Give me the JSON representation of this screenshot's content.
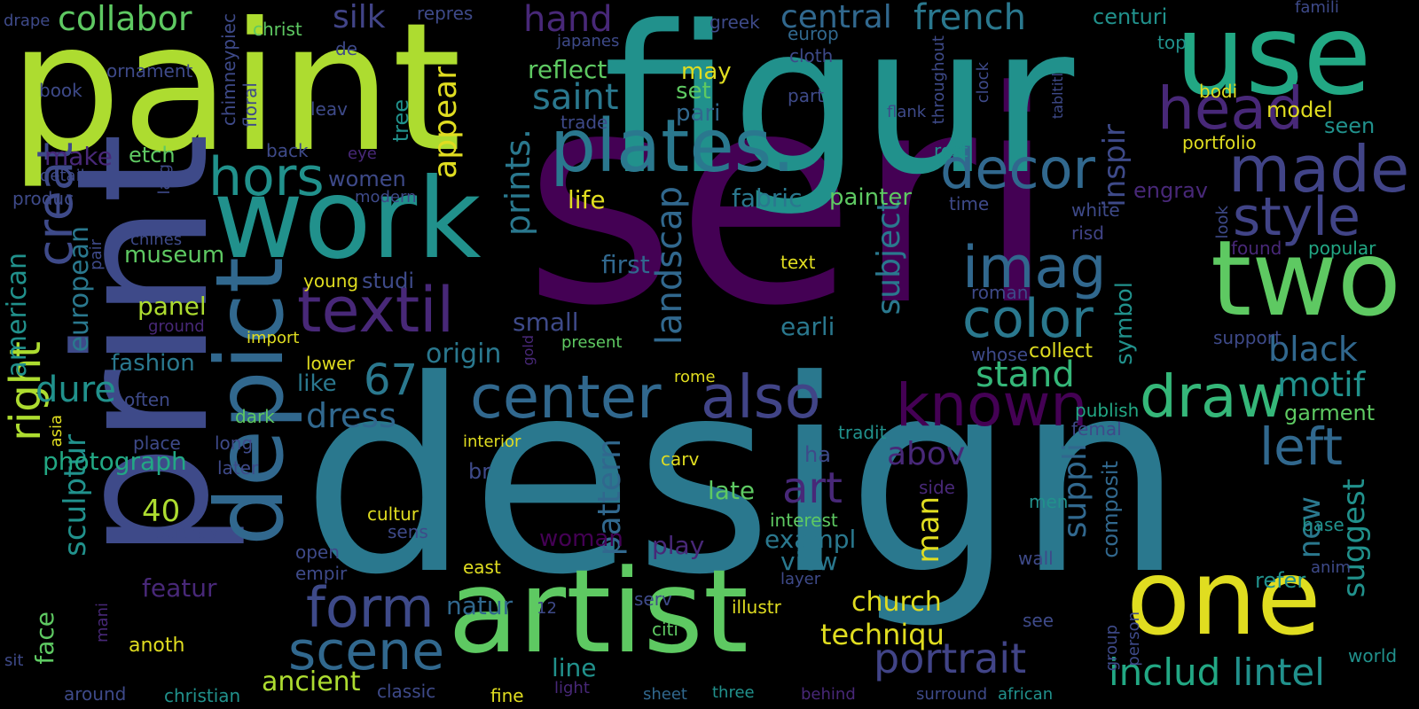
{
  "palette": {
    "dark_purple": "#440154",
    "indigo": "#482878",
    "violet": "#414487",
    "slate_blue": "#3e4a89",
    "steel_blue": "#31688e",
    "ocean": "#2a788e",
    "teal": "#21918c",
    "sea_green": "#22a884",
    "emerald": "#35b779",
    "green": "#5ec962",
    "lime": "#addc30",
    "yellow": "#fde725",
    "gold": "#e0dd20",
    "faint": "#3a3f6a"
  },
  "words": [
    {
      "text": "seri",
      "color": "#440154"
    },
    {
      "text": "design",
      "color": "#2a788e"
    },
    {
      "text": "figur",
      "color": "#21918c"
    },
    {
      "text": "paint",
      "color": "#addc30"
    },
    {
      "text": "print",
      "color": "#3e4a89"
    },
    {
      "text": "artist",
      "color": "#5ec962"
    },
    {
      "text": "work",
      "color": "#21918c"
    },
    {
      "text": "depict",
      "color": "#31688e"
    },
    {
      "text": "use",
      "color": "#22a884"
    },
    {
      "text": "two",
      "color": "#5ec962"
    },
    {
      "text": "one",
      "color": "#e0dd20"
    },
    {
      "text": "plates.",
      "color": "#2a788e"
    },
    {
      "text": "made",
      "color": "#414487"
    },
    {
      "text": "textil",
      "color": "#482878"
    },
    {
      "text": "imag",
      "color": "#31688e"
    },
    {
      "text": "center",
      "color": "#31688e"
    },
    {
      "text": "also",
      "color": "#414487"
    },
    {
      "text": "known",
      "color": "#440154"
    },
    {
      "text": "draw",
      "color": "#35b779"
    },
    {
      "text": "head",
      "color": "#482878"
    },
    {
      "text": "decor",
      "color": "#31688e"
    },
    {
      "text": "style",
      "color": "#414487"
    },
    {
      "text": "color",
      "color": "#2a788e"
    },
    {
      "text": "form",
      "color": "#3e4a89"
    },
    {
      "text": "scene",
      "color": "#31688e"
    },
    {
      "text": "hors",
      "color": "#21918c"
    },
    {
      "text": "creat",
      "color": "#3e4a89"
    },
    {
      "text": "left",
      "color": "#31688e"
    },
    {
      "text": "portrait",
      "color": "#414487"
    },
    {
      "text": "right",
      "color": "#addc30"
    },
    {
      "text": "art",
      "color": "#482878"
    },
    {
      "text": "67",
      "color": "#2a788e"
    },
    {
      "text": "dress",
      "color": "#31688e"
    },
    {
      "text": "stand",
      "color": "#35b779"
    },
    {
      "text": "black",
      "color": "#31688e"
    },
    {
      "text": "motif",
      "color": "#21918c"
    },
    {
      "text": "collabor",
      "color": "#5ec962"
    },
    {
      "text": "central",
      "color": "#31688e"
    },
    {
      "text": "french",
      "color": "#2a788e"
    },
    {
      "text": "hand",
      "color": "#482878"
    },
    {
      "text": "silk",
      "color": "#414487"
    },
    {
      "text": "saint",
      "color": "#2a788e"
    },
    {
      "text": "dure",
      "color": "#21918c"
    },
    {
      "text": "includ",
      "color": "#22a884"
    },
    {
      "text": "lintel",
      "color": "#21918c"
    },
    {
      "text": "landscap",
      "color": "#31688e"
    },
    {
      "text": "prints.",
      "color": "#2a788e"
    },
    {
      "text": "appear",
      "color": "#e0dd20"
    },
    {
      "text": "subject",
      "color": "#2a788e"
    },
    {
      "text": "pattern",
      "color": "#31688e"
    },
    {
      "text": "suppli",
      "color": "#31688e"
    },
    {
      "text": "suggest",
      "color": "#21918c"
    },
    {
      "text": "inspir",
      "color": "#3e4a89"
    },
    {
      "text": "sculptur",
      "color": "#21918c"
    },
    {
      "text": "american",
      "color": "#21918c"
    },
    {
      "text": "european",
      "color": "#2a788e"
    },
    {
      "text": "new",
      "color": "#2a788e"
    },
    {
      "text": "abov",
      "color": "#482878"
    },
    {
      "text": "man",
      "color": "#e0dd20"
    },
    {
      "text": "techniqu",
      "color": "#e0dd20"
    },
    {
      "text": "church",
      "color": "#e0dd20"
    },
    {
      "text": "ancient",
      "color": "#addc30"
    },
    {
      "text": "photograph",
      "color": "#22a884"
    },
    {
      "text": "fashion",
      "color": "#2a788e"
    },
    {
      "text": "museum",
      "color": "#5ec962"
    },
    {
      "text": "panel",
      "color": "#addc30"
    },
    {
      "text": "40",
      "color": "#addc30"
    },
    {
      "text": "face",
      "color": "#5ec962"
    },
    {
      "text": "origin",
      "color": "#2a788e"
    },
    {
      "text": "earli",
      "color": "#2a788e"
    },
    {
      "text": "exampl",
      "color": "#2a788e"
    },
    {
      "text": "view",
      "color": "#2a788e"
    },
    {
      "text": "natur",
      "color": "#31688e"
    },
    {
      "text": "line",
      "color": "#21918c"
    },
    {
      "text": "late",
      "color": "#5ec962"
    },
    {
      "text": "play",
      "color": "#482878"
    },
    {
      "text": "woman",
      "color": "#440154"
    },
    {
      "text": "featur",
      "color": "#482878"
    },
    {
      "text": "first",
      "color": "#31688e"
    },
    {
      "text": "life",
      "color": "#e0dd20"
    },
    {
      "text": "fabric",
      "color": "#2a788e"
    },
    {
      "text": "painter",
      "color": "#5ec962"
    },
    {
      "text": "small",
      "color": "#3e4a89"
    },
    {
      "text": "like",
      "color": "#2a788e"
    },
    {
      "text": "women",
      "color": "#3e4a89"
    },
    {
      "text": "studi",
      "color": "#3e4a89"
    },
    {
      "text": "make",
      "color": "#482878"
    },
    {
      "text": "etch",
      "color": "#5ec962"
    },
    {
      "text": "reflect",
      "color": "#5ec962"
    },
    {
      "text": "may",
      "color": "#e0dd20"
    },
    {
      "text": "set",
      "color": "#5ec962"
    },
    {
      "text": "pari",
      "color": "#31688e"
    },
    {
      "text": "model",
      "color": "#e0dd20"
    },
    {
      "text": "seen",
      "color": "#21918c"
    },
    {
      "text": "engrav",
      "color": "#482878"
    },
    {
      "text": "centuri",
      "color": "#21918c"
    },
    {
      "text": "top",
      "color": "#21918c"
    },
    {
      "text": "bodi",
      "color": "#e0dd20"
    },
    {
      "text": "portfolio",
      "color": "#e0dd20"
    },
    {
      "text": "symbol",
      "color": "#21918c"
    },
    {
      "text": "composit",
      "color": "#31688e"
    },
    {
      "text": "garment",
      "color": "#5ec962"
    },
    {
      "text": "refer",
      "color": "#21918c"
    },
    {
      "text": "popular",
      "color": "#22a884"
    },
    {
      "text": "support",
      "color": "#3e4a89"
    },
    {
      "text": "found",
      "color": "#482878"
    },
    {
      "text": "collect",
      "color": "#e0dd20"
    },
    {
      "text": "publish",
      "color": "#22a884"
    },
    {
      "text": "femal",
      "color": "#3e4a89"
    },
    {
      "text": "tradit",
      "color": "#21918c"
    },
    {
      "text": "white",
      "color": "#3e4a89"
    },
    {
      "text": "risd",
      "color": "#414487"
    },
    {
      "text": "roman",
      "color": "#3e4a89"
    },
    {
      "text": "whose",
      "color": "#3e4a89"
    },
    {
      "text": "text",
      "color": "#e0dd20"
    },
    {
      "text": "time",
      "color": "#3e4a89"
    },
    {
      "text": "rest",
      "color": "#21918c"
    },
    {
      "text": "europ",
      "color": "#31688e"
    },
    {
      "text": "cloth",
      "color": "#3e4a89"
    },
    {
      "text": "greek",
      "color": "#3e4a89"
    },
    {
      "text": "japanes",
      "color": "#3e4a89"
    },
    {
      "text": "part",
      "color": "#3e4a89"
    },
    {
      "text": "trade",
      "color": "#3e4a89"
    },
    {
      "text": "christ",
      "color": "#5ec962"
    },
    {
      "text": "repres",
      "color": "#3e4a89"
    },
    {
      "text": "de",
      "color": "#3e4a89"
    },
    {
      "text": "ornament",
      "color": "#3e4a89"
    },
    {
      "text": "book",
      "color": "#3e4a89"
    },
    {
      "text": "drape",
      "color": "#3e4a89"
    },
    {
      "text": "chimneypiec",
      "color": "#3e4a89"
    },
    {
      "text": "floral",
      "color": "#3e4a89"
    },
    {
      "text": "leav",
      "color": "#3e4a89"
    },
    {
      "text": "tree",
      "color": "#21918c"
    },
    {
      "text": "back",
      "color": "#3e4a89"
    },
    {
      "text": "eye",
      "color": "#482878"
    },
    {
      "text": "modern",
      "color": "#3e4a89"
    },
    {
      "text": "detail",
      "color": "#3e4a89"
    },
    {
      "text": "produc",
      "color": "#3e4a89"
    },
    {
      "text": "larg",
      "color": "#3e4a89"
    },
    {
      "text": "chines",
      "color": "#3e4a89"
    },
    {
      "text": "pair",
      "color": "#3e4a89"
    },
    {
      "text": "ground",
      "color": "#482878"
    },
    {
      "text": "import",
      "color": "#e0dd20"
    },
    {
      "text": "young",
      "color": "#e0dd20"
    },
    {
      "text": "lower",
      "color": "#e0dd20"
    },
    {
      "text": "often",
      "color": "#3e4a89"
    },
    {
      "text": "dark",
      "color": "#5ec962"
    },
    {
      "text": "place",
      "color": "#3e4a89"
    },
    {
      "text": "long",
      "color": "#3e4a89"
    },
    {
      "text": "later",
      "color": "#3e4a89"
    },
    {
      "text": "interior",
      "color": "#e0dd20"
    },
    {
      "text": "asia",
      "color": "#e0dd20"
    },
    {
      "text": "br",
      "color": "#3e4a89"
    },
    {
      "text": "ha",
      "color": "#3e4a89"
    },
    {
      "text": "side",
      "color": "#482878"
    },
    {
      "text": "cultur",
      "color": "#e0dd20"
    },
    {
      "text": "sens",
      "color": "#3e4a89"
    },
    {
      "text": "portray",
      "color": "#3e4a89"
    },
    {
      "text": "open",
      "color": "#3e4a89"
    },
    {
      "text": "empir",
      "color": "#3e4a89"
    },
    {
      "text": "east",
      "color": "#e0dd20"
    },
    {
      "text": "interest",
      "color": "#5ec962"
    },
    {
      "text": "layer",
      "color": "#3e4a89"
    },
    {
      "text": "wall",
      "color": "#3e4a89"
    },
    {
      "text": "men",
      "color": "#21918c"
    },
    {
      "text": "base",
      "color": "#21918c"
    },
    {
      "text": "anim",
      "color": "#3e4a89"
    },
    {
      "text": "see",
      "color": "#3e4a89"
    },
    {
      "text": "world",
      "color": "#21918c"
    },
    {
      "text": "person",
      "color": "#3e4a89"
    },
    {
      "text": "group",
      "color": "#3e4a89"
    },
    {
      "text": "illustr",
      "color": "#e0dd20"
    },
    {
      "text": "serv",
      "color": "#3e4a89"
    },
    {
      "text": "citi",
      "color": "#5ec962"
    },
    {
      "text": "12",
      "color": "#3e4a89"
    },
    {
      "text": "anoth",
      "color": "#e0dd20"
    },
    {
      "text": "mani",
      "color": "#482878"
    },
    {
      "text": "sit",
      "color": "#3e4a89"
    },
    {
      "text": "around",
      "color": "#3e4a89"
    },
    {
      "text": "christian",
      "color": "#21918c"
    },
    {
      "text": "classic",
      "color": "#3e4a89"
    },
    {
      "text": "fine",
      "color": "#e0dd20"
    },
    {
      "text": "light",
      "color": "#482878"
    },
    {
      "text": "sheet",
      "color": "#31688e"
    },
    {
      "text": "three",
      "color": "#21918c"
    },
    {
      "text": "behind",
      "color": "#482878"
    },
    {
      "text": "surround",
      "color": "#3e4a89"
    },
    {
      "text": "african",
      "color": "#21918c"
    },
    {
      "text": "gold",
      "color": "#482878"
    },
    {
      "text": "rome",
      "color": "#e0dd20"
    },
    {
      "text": "carv",
      "color": "#e0dd20"
    },
    {
      "text": "clock",
      "color": "#3e4a89"
    },
    {
      "text": "throughout",
      "color": "#3e4a89"
    },
    {
      "text": "tabltitl",
      "color": "#3e4a89"
    },
    {
      "text": "flank",
      "color": "#3e4a89"
    },
    {
      "text": "look",
      "color": "#3e4a89"
    },
    {
      "text": "famili",
      "color": "#3e4a89"
    },
    {
      "text": "present",
      "color": "#5ec962"
    },
    {
      "text": "`",
      "color": "#3e4a89"
    }
  ]
}
